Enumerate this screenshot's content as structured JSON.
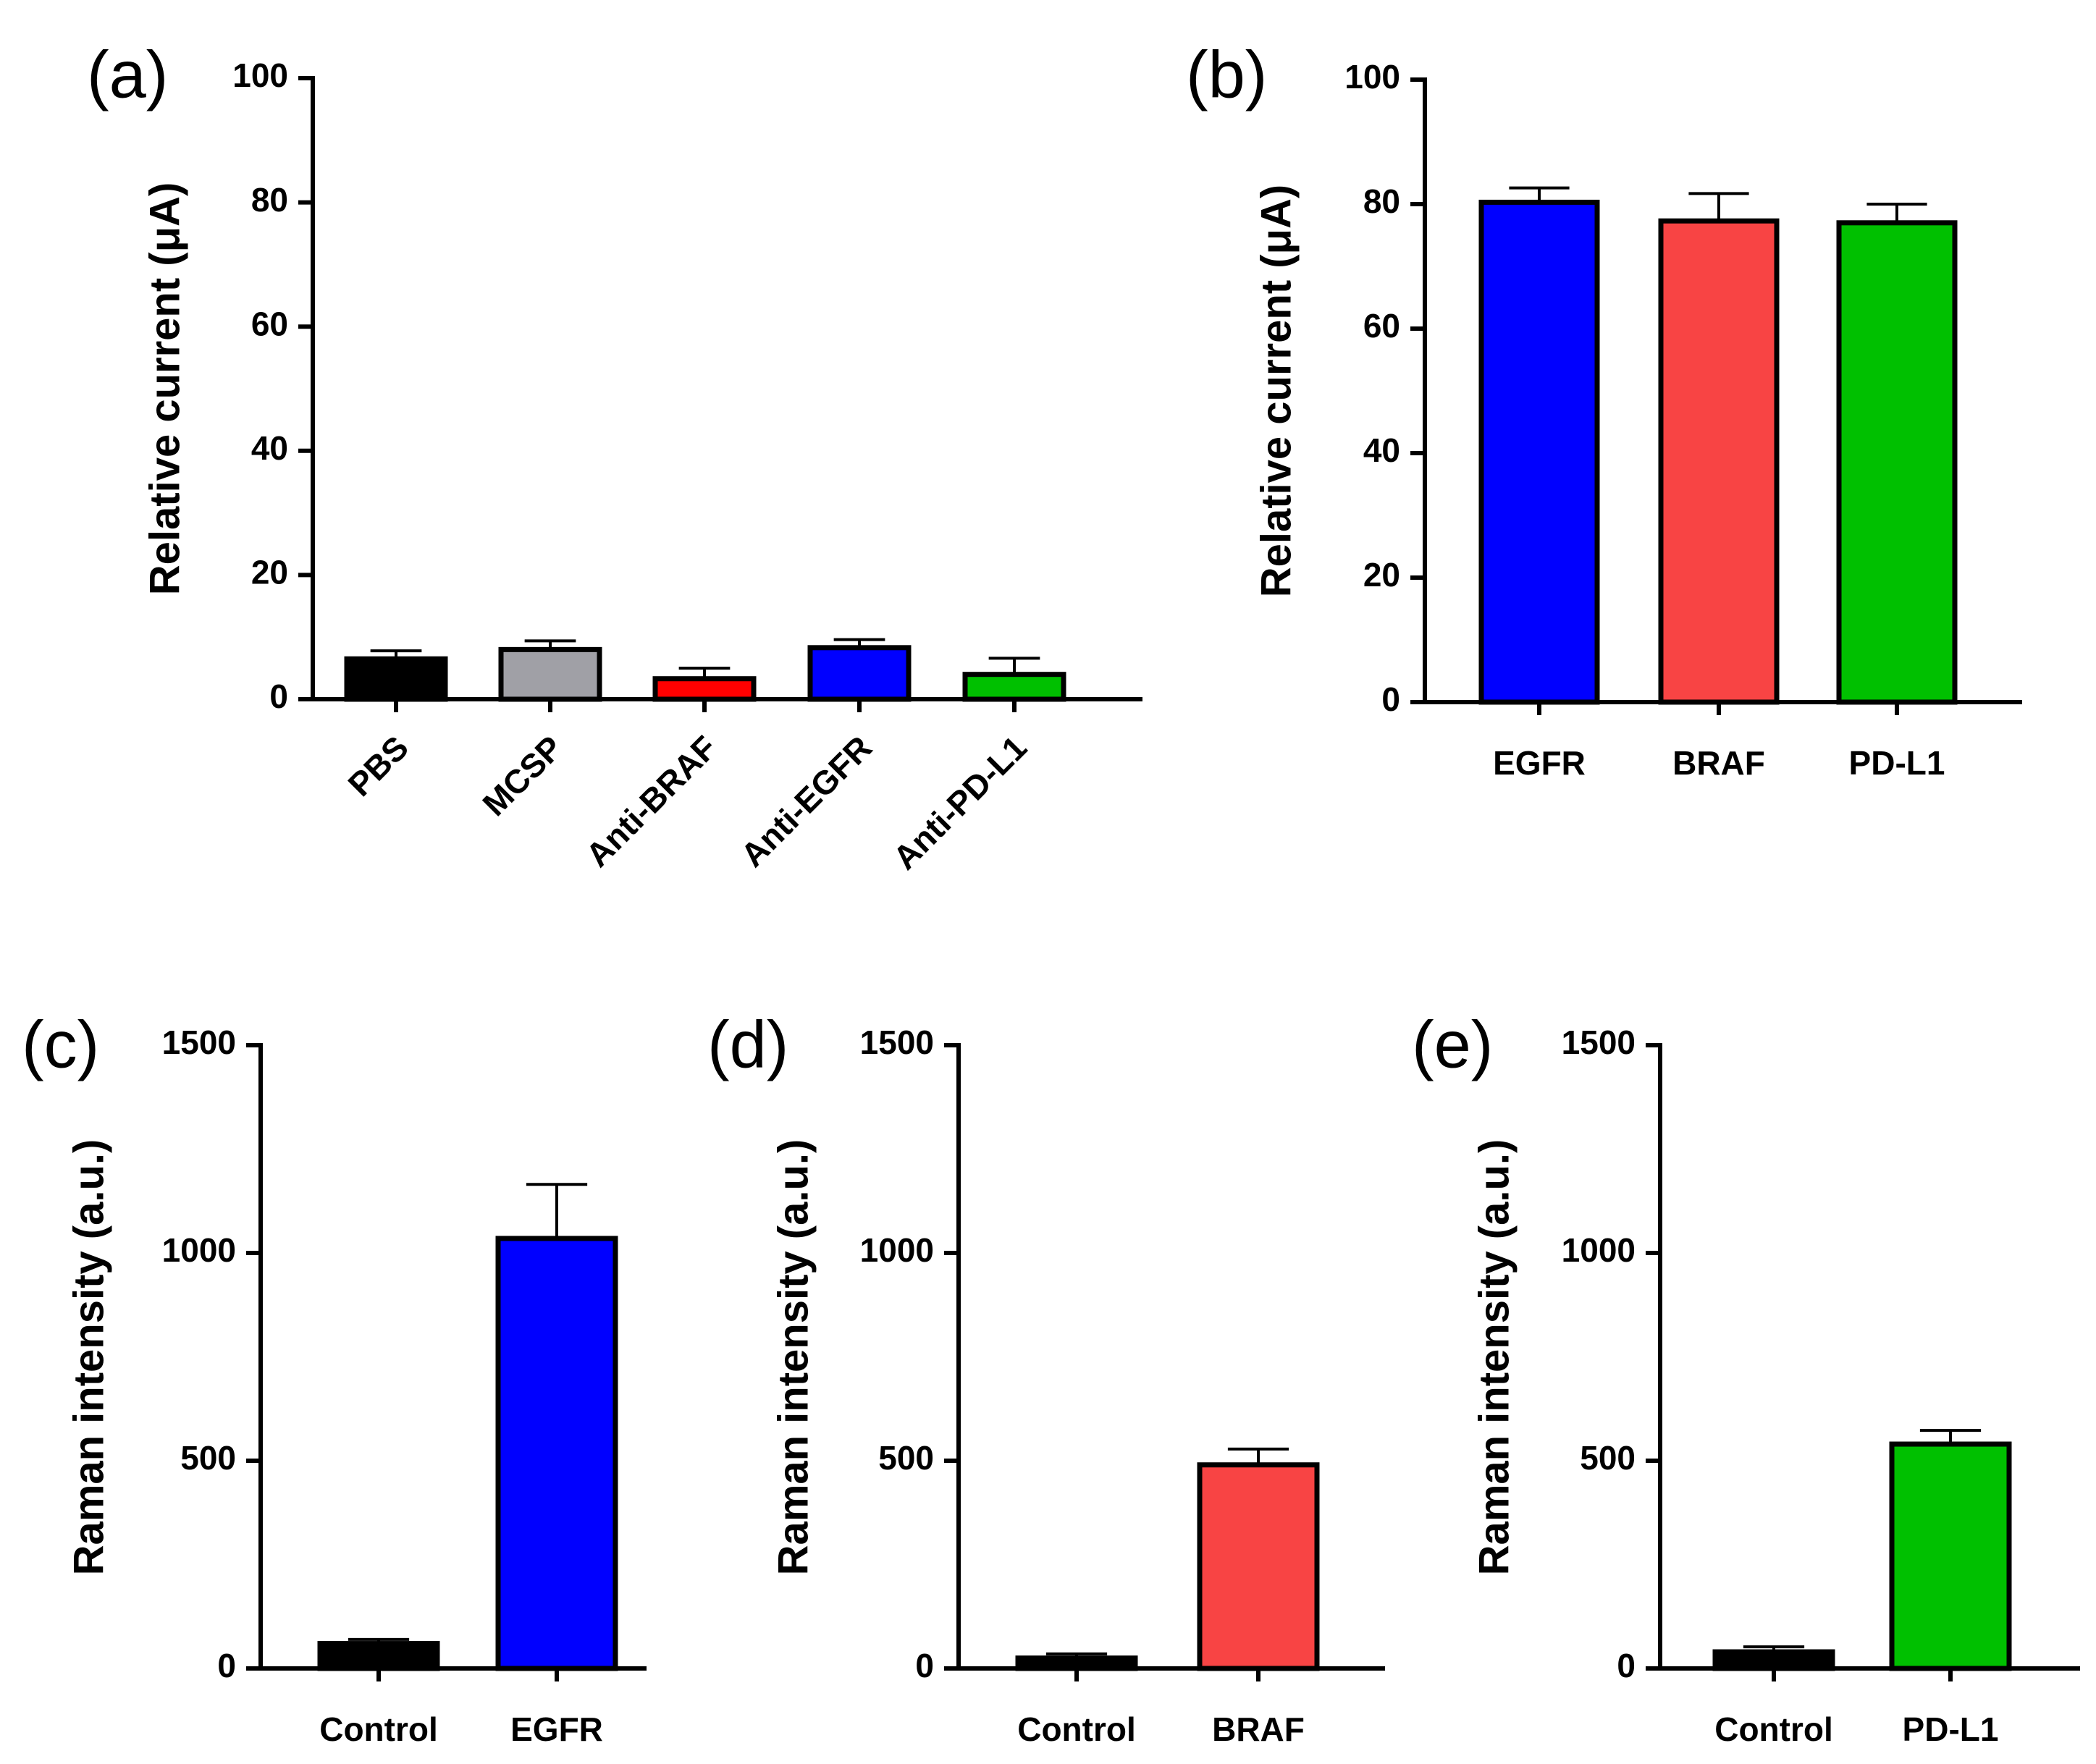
{
  "chart_data": [
    {
      "id": "a",
      "panel_label": "(a)",
      "type": "bar",
      "ylabel": "Relative current (μA)",
      "xlabel": "",
      "ylim": [
        0,
        100
      ],
      "yticks": [
        0,
        20,
        40,
        60,
        80,
        100
      ],
      "categories": [
        "PBS",
        "MCSP",
        "Anti-BRAF",
        "Anti-EGFR",
        "Anti-PD-L1"
      ],
      "values": [
        6.5,
        8.0,
        3.3,
        8.3,
        4.0
      ],
      "errors": [
        1.3,
        1.4,
        1.7,
        1.3,
        2.6
      ],
      "colors": [
        "#000000",
        "#a0a0a6",
        "#ff0000",
        "#0000ff",
        "#00c000"
      ],
      "rotated_labels": true
    },
    {
      "id": "b",
      "panel_label": "(b)",
      "type": "bar",
      "ylabel": "Relative current (μA)",
      "xlabel": "",
      "ylim": [
        0,
        100
      ],
      "yticks": [
        0,
        20,
        40,
        60,
        80,
        100
      ],
      "categories": [
        "EGFR",
        "BRAF",
        "PD-L1"
      ],
      "values": [
        80.3,
        77.3,
        77.0
      ],
      "errors": [
        2.3,
        4.4,
        3.0
      ],
      "colors": [
        "#0000ff",
        "#f84444",
        "#00c000"
      ],
      "rotated_labels": false
    },
    {
      "id": "c",
      "panel_label": "(c)",
      "type": "bar",
      "ylabel": "Raman intensity (a.u.)",
      "xlabel": "",
      "ylim": [
        0,
        1500
      ],
      "yticks": [
        0,
        500,
        1000,
        1500
      ],
      "categories": [
        "Control",
        "EGFR"
      ],
      "values": [
        60,
        1035
      ],
      "errors": [
        10,
        130
      ],
      "colors": [
        "#000000",
        "#0000ff"
      ],
      "rotated_labels": false
    },
    {
      "id": "d",
      "panel_label": "(d)",
      "type": "bar",
      "ylabel": "Raman intensity (a.u.)",
      "xlabel": "",
      "ylim": [
        0,
        1500
      ],
      "yticks": [
        0,
        500,
        1000,
        1500
      ],
      "categories": [
        "Control",
        "BRAF"
      ],
      "values": [
        25,
        490
      ],
      "errors": [
        10,
        38
      ],
      "colors": [
        "#000000",
        "#f84444"
      ],
      "rotated_labels": false
    },
    {
      "id": "e",
      "panel_label": "(e)",
      "type": "bar",
      "ylabel": "Raman intensity (a.u.)",
      "xlabel": "",
      "ylim": [
        0,
        1500
      ],
      "yticks": [
        0,
        500,
        1000,
        1500
      ],
      "categories": [
        "Control",
        "PD-L1"
      ],
      "values": [
        40,
        540
      ],
      "errors": [
        12,
        33
      ],
      "colors": [
        "#000000",
        "#00c000"
      ],
      "rotated_labels": false
    }
  ]
}
